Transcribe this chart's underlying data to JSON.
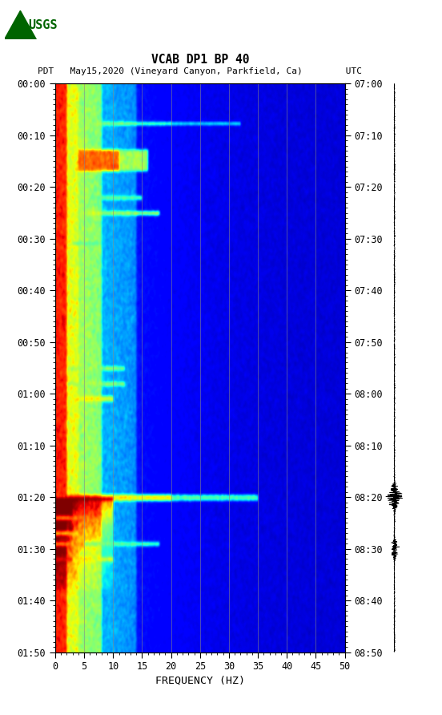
{
  "title_line1": "VCAB DP1 BP 40",
  "title_line2": "PDT   May15,2020 (Vineyard Canyon, Parkfield, Ca)        UTC",
  "xlabel": "FREQUENCY (HZ)",
  "freq_min": 0,
  "freq_max": 50,
  "time_ticks_pdt": [
    "00:00",
    "00:10",
    "00:20",
    "00:30",
    "00:40",
    "00:50",
    "01:00",
    "01:10",
    "01:20",
    "01:30",
    "01:40",
    "01:50"
  ],
  "time_ticks_utc": [
    "07:00",
    "07:10",
    "07:20",
    "07:30",
    "07:40",
    "07:50",
    "08:00",
    "08:10",
    "08:20",
    "08:30",
    "08:40",
    "08:50"
  ],
  "freq_ticks": [
    0,
    5,
    10,
    15,
    20,
    25,
    30,
    35,
    40,
    45,
    50
  ],
  "grid_freqs": [
    5,
    10,
    15,
    20,
    25,
    30,
    35,
    40,
    45
  ],
  "figure_bg": "#ffffff",
  "usgs_green": "#006400"
}
